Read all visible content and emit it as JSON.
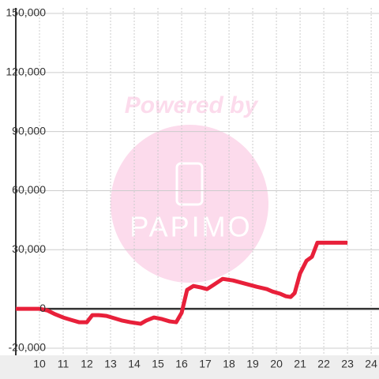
{
  "chart_data": {
    "type": "line",
    "x": [
      9,
      10,
      10.33,
      10.67,
      11,
      11.33,
      11.67,
      12,
      12.23,
      12.5,
      12.83,
      13.17,
      13.5,
      13.83,
      14.27,
      14.5,
      14.83,
      15.17,
      15.5,
      15.77,
      16,
      16.23,
      16.5,
      16.83,
      17.07,
      17.33,
      17.73,
      18.17,
      18.67,
      19.17,
      19.6,
      19.83,
      20.17,
      20.4,
      20.6,
      20.77,
      21,
      21.27,
      21.5,
      21.73,
      23
    ],
    "series": [
      {
        "color": "#e8203a",
        "values": [
          0,
          0,
          -800,
          -2800,
          -4400,
          -5600,
          -6800,
          -6800,
          -3200,
          -3200,
          -3600,
          -4800,
          -6000,
          -6800,
          -7600,
          -6000,
          -4400,
          -5200,
          -6400,
          -6800,
          -2000,
          9600,
          11600,
          10800,
          10000,
          12000,
          15200,
          14400,
          12800,
          11200,
          10000,
          8800,
          7600,
          6400,
          6000,
          8000,
          18000,
          24400,
          26400,
          33600,
          33600
        ]
      }
    ],
    "xlim": [
      9,
      24.33
    ],
    "xticks": [
      10,
      11,
      12,
      13,
      14,
      15,
      16,
      17,
      18,
      19,
      20,
      21,
      22,
      23,
      24
    ],
    "ylim": [
      -20000,
      150000
    ],
    "yticks": [
      {
        "value": -20000,
        "label": "-20,000"
      },
      0,
      {
        "value": 30000,
        "label": "30,000"
      },
      {
        "value": 60000,
        "label": "60,000"
      },
      {
        "value": 90000,
        "label": "90,000"
      },
      {
        "value": 120000,
        "label": "120,000"
      },
      {
        "value": 150000,
        "label": "150,000"
      }
    ],
    "grid": true
  },
  "watermark": {
    "text": "Powered by",
    "logo": "PAPIMO"
  }
}
